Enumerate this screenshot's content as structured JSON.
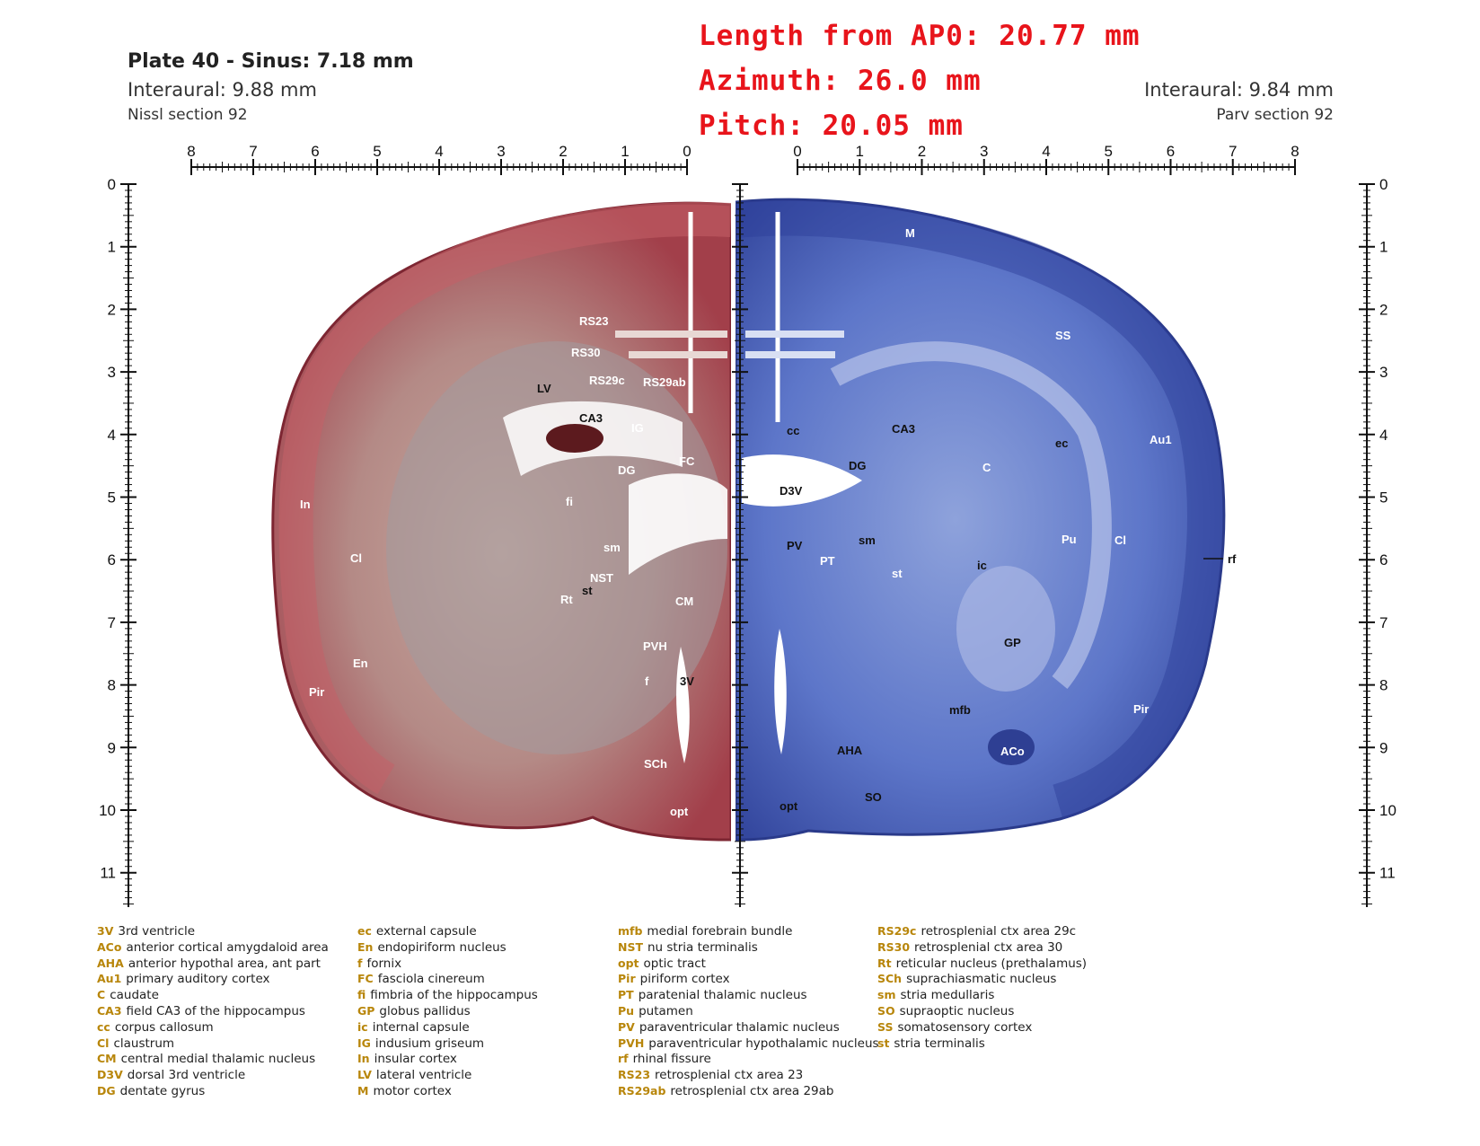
{
  "header": {
    "plate_title": "Plate 40 - Sinus: 7.18 mm",
    "left_interaural": "Interaural: 9.88 mm",
    "left_section": "Nissl section 92",
    "right_interaural": "Interaural: 9.84 mm",
    "right_section": "Parv section 92"
  },
  "coordinates": {
    "length_from_ap0": "Length from AP0: 20.77 mm",
    "azimuth": "Azimuth: 26.0 mm",
    "pitch": "Pitch: 20.05 mm"
  },
  "rulers": {
    "left_horizontal_labels": [
      "8",
      "7",
      "6",
      "5",
      "4",
      "3",
      "2",
      "1",
      "0"
    ],
    "right_horizontal_labels": [
      "0",
      "1",
      "2",
      "3",
      "4",
      "5",
      "6",
      "7",
      "8"
    ],
    "vertical_labels": [
      "0",
      "1",
      "2",
      "3",
      "4",
      "5",
      "6",
      "7",
      "8",
      "9",
      "10",
      "11"
    ]
  },
  "colors": {
    "nissl_stain": "#a8404a",
    "parv_stain": "#3a57b8",
    "coordinate_text": "#e8141b",
    "legend_abbr": "#b8860b"
  },
  "labels_left": {
    "RS23": "RS23",
    "RS30": "RS30",
    "RS29c": "RS29c",
    "RS29ab": "RS29ab",
    "LV": "LV",
    "CA3": "CA3",
    "IG": "IG",
    "DG": "DG",
    "FC": "FC",
    "fi": "fi",
    "In": "In",
    "Cl": "Cl",
    "sm": "sm",
    "NST": "NST",
    "Rt": "Rt",
    "st": "st",
    "CM": "CM",
    "PVH": "PVH",
    "En": "En",
    "f": "f",
    "3V": "3V",
    "Pir": "Pir",
    "SCh": "SCh",
    "opt": "opt"
  },
  "labels_right": {
    "M": "M",
    "SS": "SS",
    "cc": "cc",
    "CA3": "CA3",
    "ec": "ec",
    "Au1": "Au1",
    "DG": "DG",
    "C": "C",
    "D3V": "D3V",
    "Pu": "Pu",
    "Cl": "Cl",
    "rf": "rf",
    "PV": "PV",
    "sm": "sm",
    "PT": "PT",
    "st": "st",
    "ic": "ic",
    "GP": "GP",
    "mfb": "mfb",
    "Pir": "Pir",
    "AHA": "AHA",
    "ACo": "ACo",
    "SO": "SO",
    "opt": "opt"
  },
  "legend": {
    "col1": [
      {
        "abbr": "3V",
        "text": "3rd ventricle"
      },
      {
        "abbr": "ACo",
        "text": "anterior cortical amygdaloid area"
      },
      {
        "abbr": "AHA",
        "text": "anterior hypothal area, ant part"
      },
      {
        "abbr": "Au1",
        "text": "primary auditory cortex"
      },
      {
        "abbr": "C",
        "text": "caudate"
      },
      {
        "abbr": "CA3",
        "text": "field CA3 of the hippocampus"
      },
      {
        "abbr": "cc",
        "text": "corpus callosum"
      },
      {
        "abbr": "Cl",
        "text": "claustrum"
      },
      {
        "abbr": "CM",
        "text": "central medial thalamic nucleus"
      },
      {
        "abbr": "D3V",
        "text": "dorsal 3rd ventricle"
      },
      {
        "abbr": "DG",
        "text": "dentate gyrus"
      }
    ],
    "col2": [
      {
        "abbr": "ec",
        "text": "external capsule"
      },
      {
        "abbr": "En",
        "text": "endopiriform nucleus"
      },
      {
        "abbr": "f",
        "text": "fornix"
      },
      {
        "abbr": "FC",
        "text": "fasciola cinereum"
      },
      {
        "abbr": "fi",
        "text": "fimbria of the hippocampus"
      },
      {
        "abbr": "GP",
        "text": "globus pallidus"
      },
      {
        "abbr": "ic",
        "text": "internal capsule"
      },
      {
        "abbr": "IG",
        "text": "indusium griseum"
      },
      {
        "abbr": "In",
        "text": "insular cortex"
      },
      {
        "abbr": "LV",
        "text": "lateral ventricle"
      },
      {
        "abbr": "M",
        "text": "motor cortex"
      }
    ],
    "col3": [
      {
        "abbr": "mfb",
        "text": "medial forebrain bundle"
      },
      {
        "abbr": "NST",
        "text": "nu stria terminalis"
      },
      {
        "abbr": "opt",
        "text": "optic tract"
      },
      {
        "abbr": "Pir",
        "text": "piriform cortex"
      },
      {
        "abbr": "PT",
        "text": "paratenial thalamic nucleus"
      },
      {
        "abbr": "Pu",
        "text": "putamen"
      },
      {
        "abbr": "PV",
        "text": "paraventricular thalamic nucleus"
      },
      {
        "abbr": "PVH",
        "text": "paraventricular hypothalamic nucleus"
      },
      {
        "abbr": "rf",
        "text": "rhinal fissure"
      },
      {
        "abbr": "RS23",
        "text": "retrosplenial ctx area 23"
      },
      {
        "abbr": "RS29ab",
        "text": "retrosplenial ctx area 29ab"
      }
    ],
    "col4": [
      {
        "abbr": "RS29c",
        "text": "retrosplenial ctx area 29c"
      },
      {
        "abbr": "RS30",
        "text": "retrosplenial ctx area 30"
      },
      {
        "abbr": "Rt",
        "text": "reticular nucleus (prethalamus)"
      },
      {
        "abbr": "SCh",
        "text": "suprachiasmatic nucleus"
      },
      {
        "abbr": "sm",
        "text": "stria medullaris"
      },
      {
        "abbr": "SO",
        "text": "supraoptic nucleus"
      },
      {
        "abbr": "SS",
        "text": "somatosensory cortex"
      },
      {
        "abbr": "st",
        "text": "stria terminalis"
      }
    ]
  }
}
